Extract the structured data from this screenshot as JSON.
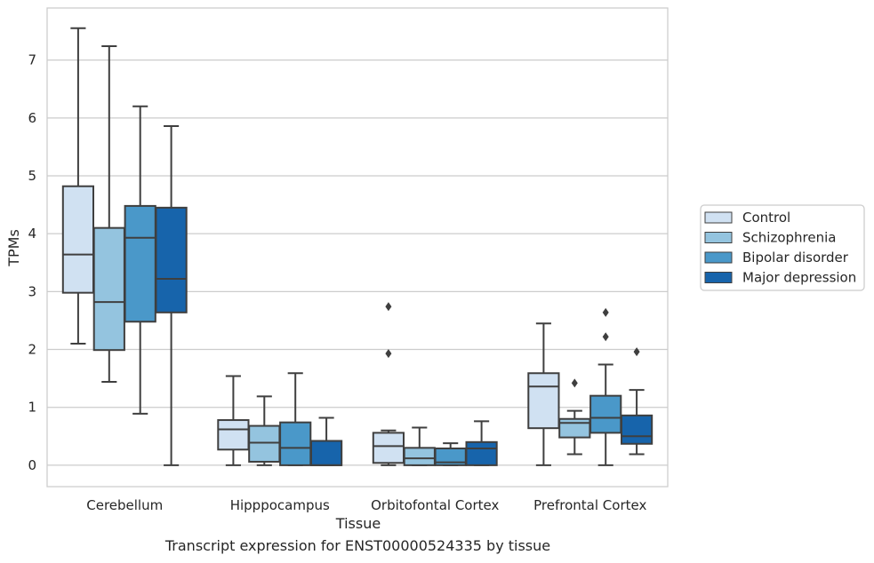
{
  "caption": "Transcript expression for ENST00000524335 by tissue",
  "chart_data": {
    "type": "boxplot",
    "xlabel": "Tissue",
    "ylabel": "TPMs",
    "ylim": [
      -0.37,
      7.9
    ],
    "yticks": [
      0,
      1,
      2,
      3,
      4,
      5,
      6,
      7
    ],
    "grid": "horizontal",
    "legend_position": "right",
    "categories": [
      "Cerebellum",
      "Hipppocampus",
      "Orbitofontal Cortex",
      "Prefrontal Cortex"
    ],
    "series": [
      {
        "name": "Control",
        "color": "#d0e1f2",
        "boxes": [
          {
            "whislo": 2.1,
            "q1": 2.98,
            "med": 3.64,
            "q3": 4.82,
            "whishi": 7.55,
            "fliers": []
          },
          {
            "whislo": 0.0,
            "q1": 0.27,
            "med": 0.62,
            "q3": 0.78,
            "whishi": 1.54,
            "fliers": []
          },
          {
            "whislo": 0.0,
            "q1": 0.04,
            "med": 0.33,
            "q3": 0.56,
            "whishi": 0.6,
            "fliers": [
              1.93,
              2.74
            ]
          },
          {
            "whislo": 0.0,
            "q1": 0.64,
            "med": 1.36,
            "q3": 1.59,
            "whishi": 2.45,
            "fliers": []
          }
        ]
      },
      {
        "name": "Schizophrenia",
        "color": "#94c4df",
        "boxes": [
          {
            "whislo": 1.44,
            "q1": 1.99,
            "med": 2.82,
            "q3": 4.1,
            "whishi": 7.24,
            "fliers": []
          },
          {
            "whislo": 0.0,
            "q1": 0.06,
            "med": 0.39,
            "q3": 0.68,
            "whishi": 1.19,
            "fliers": []
          },
          {
            "whislo": 0.0,
            "q1": 0.0,
            "med": 0.12,
            "q3": 0.3,
            "whishi": 0.65,
            "fliers": []
          },
          {
            "whislo": 0.19,
            "q1": 0.48,
            "med": 0.73,
            "q3": 0.8,
            "whishi": 0.94,
            "fliers": [
              1.42
            ]
          }
        ]
      },
      {
        "name": "Bipolar disorder",
        "color": "#4a98c9",
        "boxes": [
          {
            "whislo": 0.89,
            "q1": 2.48,
            "med": 3.93,
            "q3": 4.48,
            "whishi": 6.2,
            "fliers": []
          },
          {
            "whislo": 0.0,
            "q1": 0.0,
            "med": 0.3,
            "q3": 0.74,
            "whishi": 1.59,
            "fliers": []
          },
          {
            "whislo": 0.0,
            "q1": 0.0,
            "med": 0.05,
            "q3": 0.29,
            "whishi": 0.38,
            "fliers": []
          },
          {
            "whislo": 0.0,
            "q1": 0.56,
            "med": 0.82,
            "q3": 1.2,
            "whishi": 1.74,
            "fliers": [
              2.22,
              2.64
            ]
          }
        ]
      },
      {
        "name": "Major depression",
        "color": "#1764ab",
        "boxes": [
          {
            "whislo": 0.0,
            "q1": 2.64,
            "med": 3.22,
            "q3": 4.45,
            "whishi": 5.86,
            "fliers": []
          },
          {
            "whislo": 0.0,
            "q1": 0.0,
            "med": 0.0,
            "q3": 0.42,
            "whishi": 0.82,
            "fliers": []
          },
          {
            "whislo": 0.0,
            "q1": 0.0,
            "med": 0.29,
            "q3": 0.4,
            "whishi": 0.76,
            "fliers": []
          },
          {
            "whislo": 0.19,
            "q1": 0.37,
            "med": 0.5,
            "q3": 0.86,
            "whishi": 1.3,
            "fliers": [
              1.96
            ]
          }
        ]
      }
    ]
  }
}
